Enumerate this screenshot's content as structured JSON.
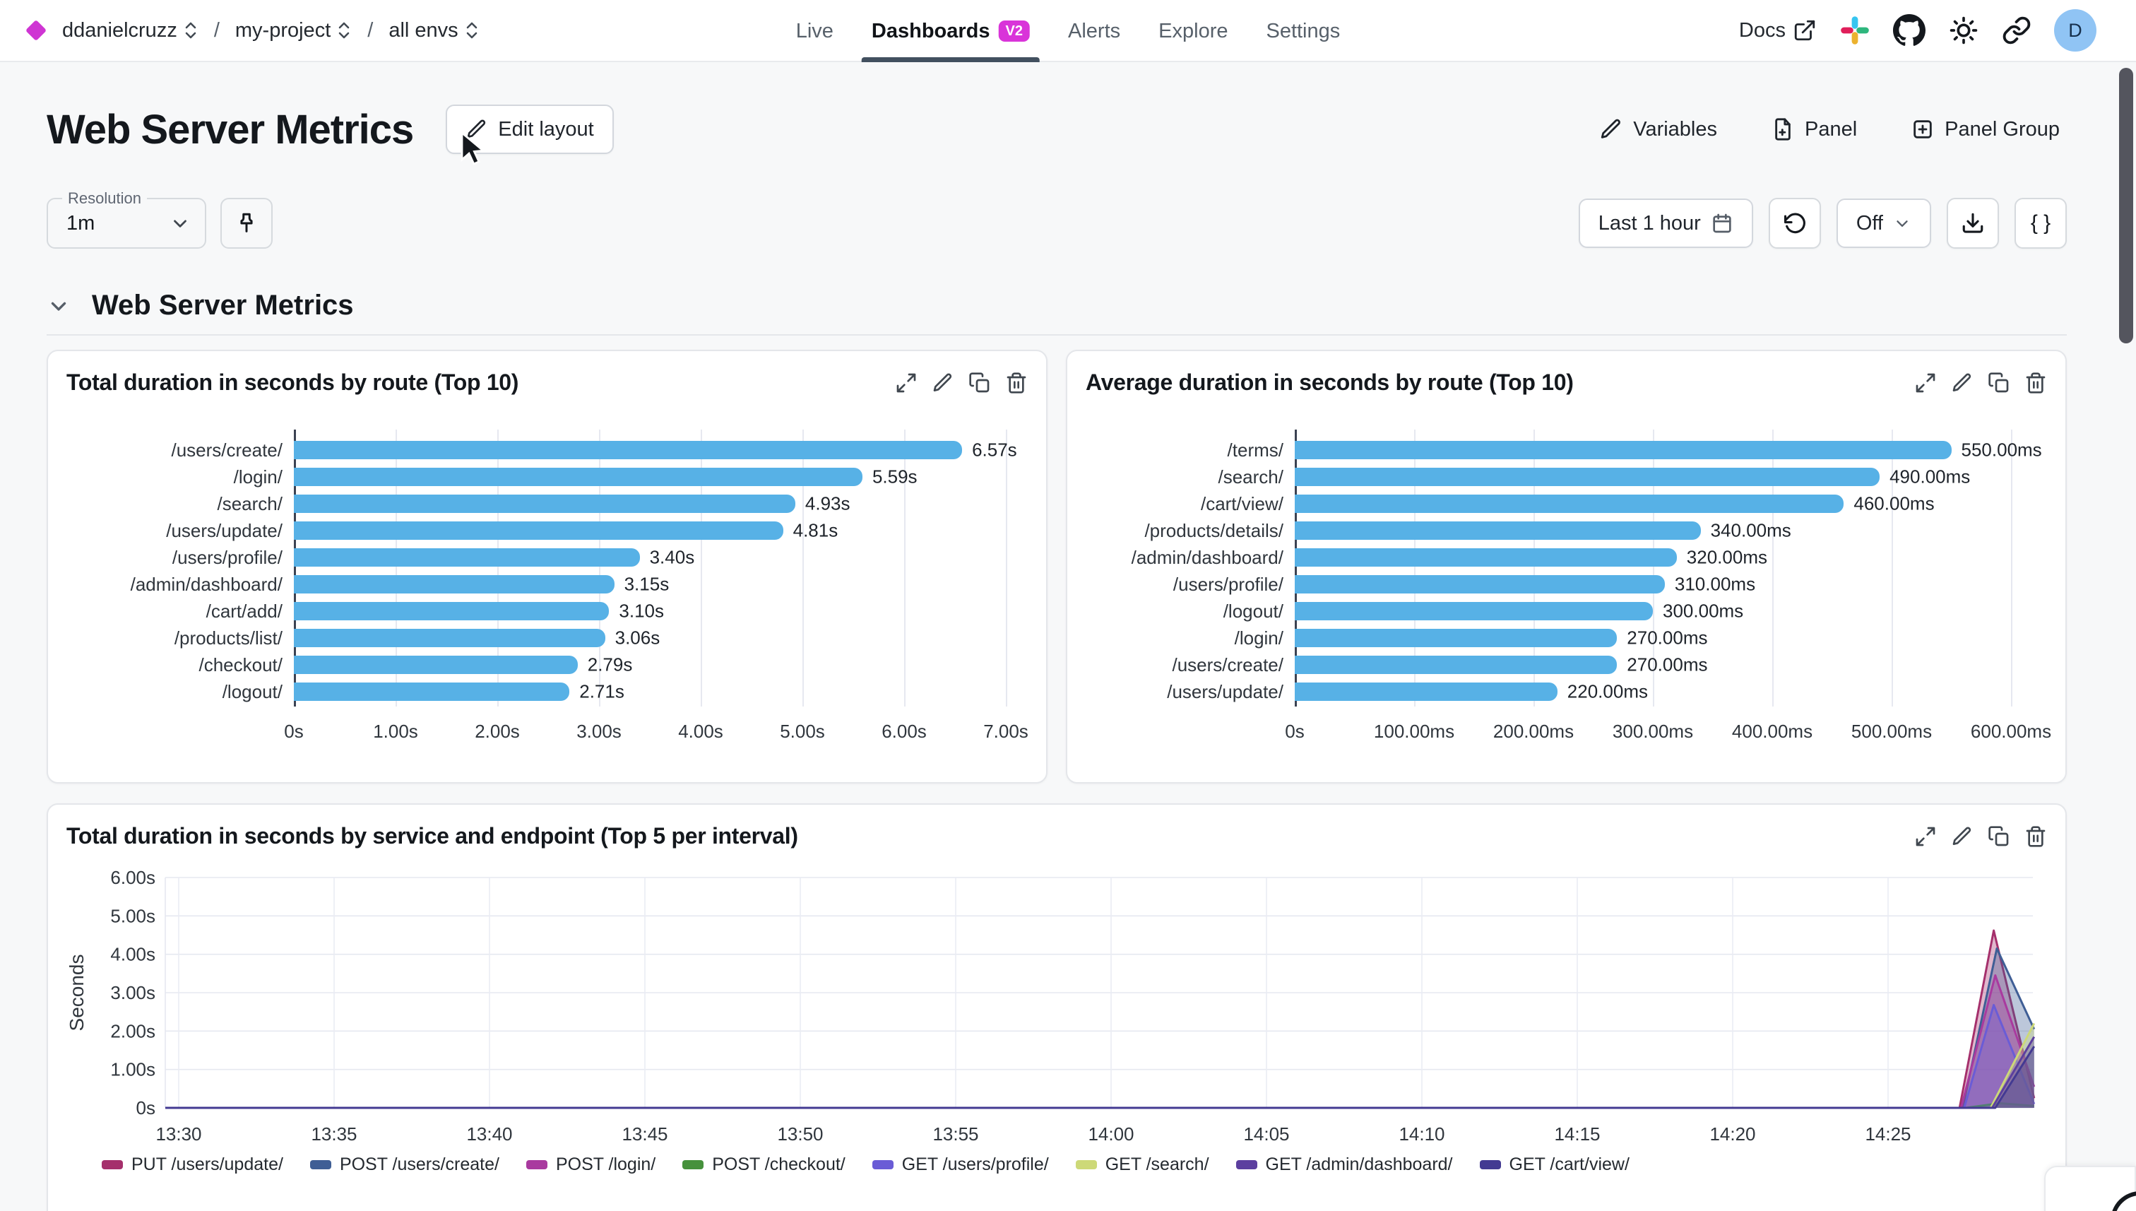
{
  "nav": {
    "breadcrumb": {
      "org": "ddanielcruzz",
      "project": "my-project",
      "env": "all envs"
    },
    "tabs": [
      {
        "label": "Live",
        "active": false
      },
      {
        "label": "Dashboards",
        "active": true,
        "badge": "V2"
      },
      {
        "label": "Alerts",
        "active": false
      },
      {
        "label": "Explore",
        "active": false
      },
      {
        "label": "Settings",
        "active": false
      }
    ],
    "docs_label": "Docs",
    "avatar_letter": "D"
  },
  "header": {
    "title": "Web Server Metrics",
    "edit_layout_label": "Edit layout",
    "variables_label": "Variables",
    "panel_label": "Panel",
    "panel_group_label": "Panel Group"
  },
  "controls": {
    "resolution_label": "Resolution",
    "resolution_value": "1m",
    "time_range_label": "Last 1 hour",
    "auto_refresh_value": "Off",
    "braces_label": "{ }"
  },
  "section": {
    "title": "Web Server Metrics"
  },
  "chart_data": [
    {
      "type": "bar",
      "title": "Total duration in seconds by route (Top 10)",
      "orientation": "horizontal",
      "categories": [
        "/users/create/",
        "/login/",
        "/search/",
        "/users/update/",
        "/users/profile/",
        "/admin/dashboard/",
        "/cart/add/",
        "/products/list/",
        "/checkout/",
        "/logout/"
      ],
      "values": [
        6.57,
        5.59,
        4.93,
        4.81,
        3.4,
        3.15,
        3.1,
        3.06,
        2.79,
        2.71
      ],
      "value_labels": [
        "6.57s",
        "5.59s",
        "4.93s",
        "4.81s",
        "3.40s",
        "3.15s",
        "3.10s",
        "3.06s",
        "2.79s",
        "2.71s"
      ],
      "x_ticks": [
        "0s",
        "1.00s",
        "2.00s",
        "3.00s",
        "4.00s",
        "5.00s",
        "6.00s",
        "7.00s"
      ],
      "xlim": [
        0,
        7
      ],
      "bar_color": "#57b1e6",
      "grid": true
    },
    {
      "type": "bar",
      "title": "Average duration in seconds by route (Top 10)",
      "orientation": "horizontal",
      "categories": [
        "/terms/",
        "/search/",
        "/cart/view/",
        "/products/details/",
        "/admin/dashboard/",
        "/users/profile/",
        "/logout/",
        "/login/",
        "/users/create/",
        "/users/update/"
      ],
      "values": [
        550,
        490,
        460,
        340,
        320,
        310,
        300,
        270,
        270,
        220
      ],
      "value_labels": [
        "550.00ms",
        "490.00ms",
        "460.00ms",
        "340.00ms",
        "320.00ms",
        "310.00ms",
        "300.00ms",
        "270.00ms",
        "270.00ms",
        "220.00ms"
      ],
      "x_ticks": [
        "0s",
        "100.00ms",
        "200.00ms",
        "300.00ms",
        "400.00ms",
        "500.00ms",
        "600.00ms"
      ],
      "xlim": [
        0,
        600
      ],
      "bar_color": "#57b1e6",
      "grid": true
    },
    {
      "type": "area",
      "title": "Total duration in seconds by service and endpoint (Top 5 per interval)",
      "ylabel": "Seconds",
      "y_ticks": [
        "0s",
        "1.00s",
        "2.00s",
        "3.00s",
        "4.00s",
        "5.00s",
        "6.00s"
      ],
      "ylim": [
        0,
        6.6
      ],
      "x_ticks": [
        "13:30",
        "13:35",
        "13:40",
        "13:45",
        "13:50",
        "13:55",
        "14:00",
        "14:05",
        "14:10",
        "14:15",
        "14:20",
        "14:25"
      ],
      "grid": true,
      "legend_position": "bottom",
      "fill_opacity": 0.35,
      "series": [
        {
          "name": "PUT /users/update/",
          "color": "#a5306c",
          "points": [
            [
              -0.43,
              0
            ],
            [
              57.3,
              0
            ],
            [
              58.4,
              4.62
            ],
            [
              59.7,
              0.25
            ]
          ]
        },
        {
          "name": "POST /users/create/",
          "color": "#3f5e95",
          "points": [
            [
              -0.43,
              0
            ],
            [
              57.4,
              0
            ],
            [
              58.5,
              4.15
            ],
            [
              59.7,
              2.05
            ]
          ]
        },
        {
          "name": "POST /login/",
          "color": "#a93a9f",
          "points": [
            [
              -0.43,
              0
            ],
            [
              57.35,
              0
            ],
            [
              58.45,
              3.45
            ],
            [
              59.7,
              0.55
            ]
          ]
        },
        {
          "name": "POST /checkout/",
          "color": "#46913c",
          "points": [
            [
              -0.43,
              0
            ],
            [
              57.5,
              0
            ],
            [
              58.6,
              0.12
            ],
            [
              59.7,
              0.05
            ]
          ]
        },
        {
          "name": "GET /users/profile/",
          "color": "#6a5cd6",
          "points": [
            [
              -0.43,
              0
            ],
            [
              57.45,
              0
            ],
            [
              58.4,
              2.68
            ],
            [
              59.7,
              0.1
            ]
          ]
        },
        {
          "name": "GET /search/",
          "color": "#cdd978",
          "points": [
            [
              -0.43,
              0
            ],
            [
              58.3,
              0
            ],
            [
              59.7,
              2.2
            ]
          ]
        },
        {
          "name": "GET /admin/dashboard/",
          "color": "#5c3f9f",
          "points": [
            [
              -0.43,
              0
            ],
            [
              58.35,
              0
            ],
            [
              59.7,
              1.85
            ]
          ]
        },
        {
          "name": "GET /cart/view/",
          "color": "#433a92",
          "points": [
            [
              -0.43,
              0
            ],
            [
              58.45,
              0
            ],
            [
              59.7,
              1.6
            ]
          ]
        }
      ]
    }
  ]
}
